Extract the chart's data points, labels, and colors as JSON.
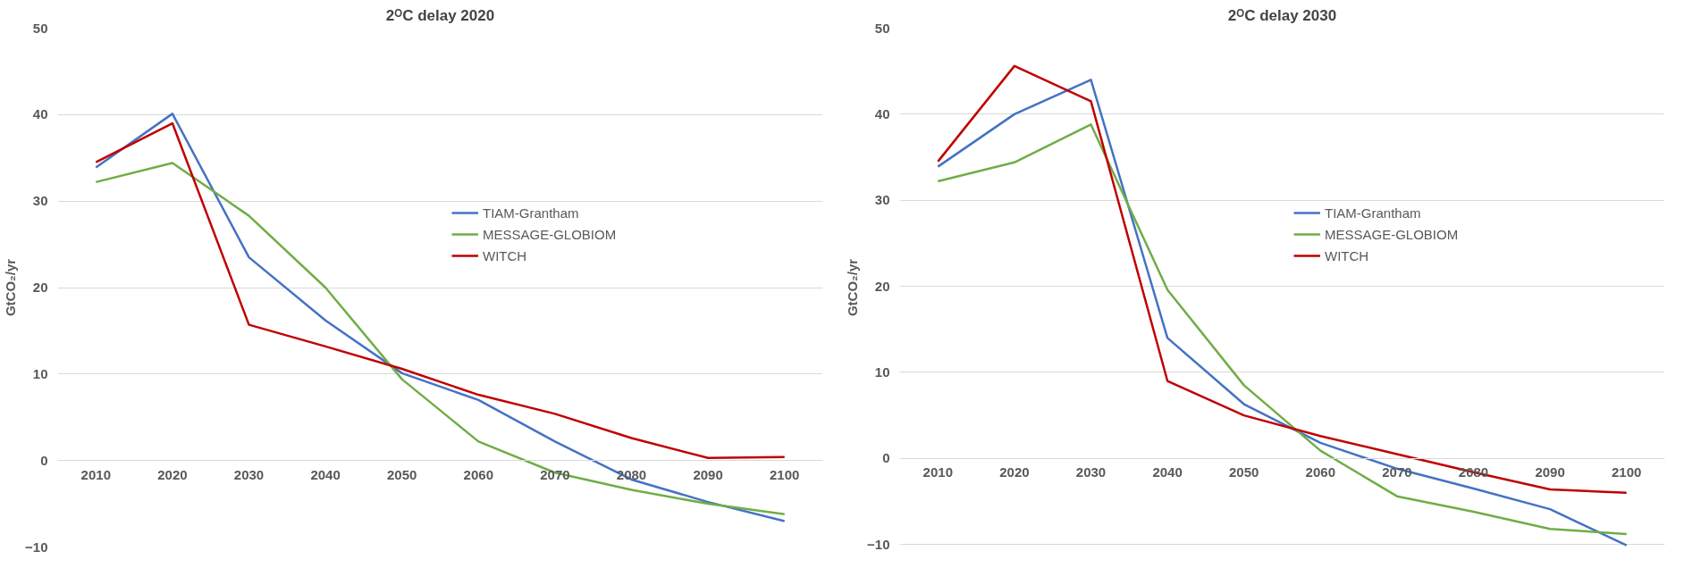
{
  "chart_data": [
    {
      "type": "line",
      "title": "2ᴼC delay 2020",
      "ylabel": "GtCO₂/yr",
      "categories": [
        "2010",
        "2020",
        "2030",
        "2040",
        "2050",
        "2060",
        "2070",
        "2080",
        "2090",
        "2100"
      ],
      "ylim": [
        -10,
        50
      ],
      "yticks": [
        -10,
        0,
        10,
        20,
        30,
        40,
        50
      ],
      "grid": "y",
      "legend": "top right",
      "marker": "none",
      "line_style": "solid",
      "series": [
        {
          "name": "TIAM-Grantham",
          "color": "#4472c4",
          "values": [
            33.9,
            40.1,
            23.5,
            16.2,
            10.1,
            7.0,
            2.2,
            -2.2,
            -4.8,
            -7.0
          ]
        },
        {
          "name": "MESSAGE-GLOBIOM",
          "color": "#70ad47",
          "values": [
            32.2,
            34.4,
            28.3,
            20.0,
            9.4,
            2.2,
            -1.4,
            -3.4,
            -5.0,
            -6.2
          ]
        },
        {
          "name": "WITCH",
          "color": "#c00000",
          "values": [
            34.5,
            39.0,
            15.7,
            13.2,
            10.6,
            7.6,
            5.4,
            2.6,
            0.3,
            0.4
          ]
        }
      ]
    },
    {
      "type": "line",
      "title": "2ᴼC delay 2030",
      "ylabel": "GtCO₂/yr",
      "categories": [
        "2010",
        "2020",
        "2030",
        "2040",
        "2050",
        "2060",
        "2070",
        "2080",
        "2090",
        "2100"
      ],
      "ylim": [
        -10.3,
        50
      ],
      "yticks": [
        -10,
        0,
        10,
        20,
        30,
        40,
        50
      ],
      "grid": "y",
      "legend": "top right",
      "marker": "none",
      "line_style": "solid",
      "series": [
        {
          "name": "TIAM-Grantham",
          "color": "#4472c4",
          "values": [
            33.9,
            40.0,
            44.0,
            14.0,
            6.3,
            1.8,
            -1.2,
            -3.5,
            -5.9,
            -10.1
          ]
        },
        {
          "name": "MESSAGE-GLOBIOM",
          "color": "#70ad47",
          "values": [
            32.2,
            34.4,
            38.8,
            19.6,
            8.5,
            0.9,
            -4.4,
            -6.2,
            -8.2,
            -8.8
          ]
        },
        {
          "name": "WITCH",
          "color": "#c00000",
          "values": [
            34.5,
            45.6,
            41.5,
            9.0,
            5.0,
            2.6,
            0.5,
            -1.6,
            -3.6,
            -4.0
          ]
        }
      ]
    }
  ]
}
